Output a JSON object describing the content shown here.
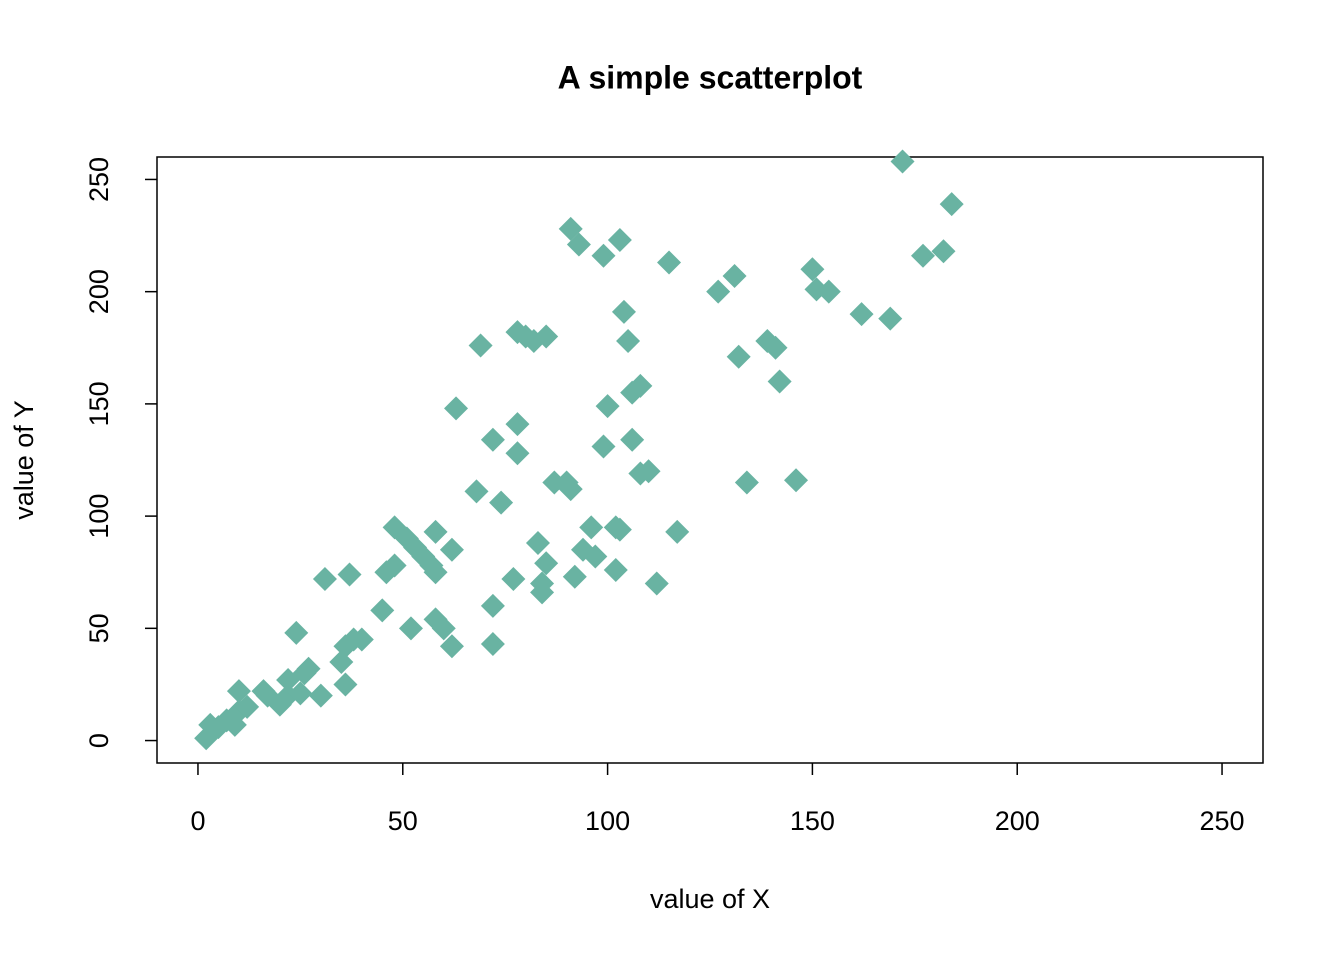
{
  "chart_data": {
    "type": "scatter",
    "title": "A simple scatterplot",
    "x_label": "value of X",
    "y_label": "value of Y",
    "x": [
      2,
      3,
      5,
      7,
      9,
      10,
      10,
      12,
      16,
      17,
      20,
      22,
      22,
      24,
      25,
      26,
      27,
      30,
      31,
      35,
      36,
      36,
      37,
      38,
      40,
      45,
      46,
      48,
      48,
      51,
      52,
      53,
      55,
      57,
      58,
      58,
      58,
      60,
      62,
      62,
      63,
      68,
      69,
      72,
      72,
      72,
      74,
      77,
      78,
      78,
      78,
      80,
      82,
      83,
      84,
      84,
      85,
      85,
      87,
      90,
      91,
      91,
      92,
      93,
      94,
      96,
      97,
      99,
      99,
      100,
      102,
      102,
      103,
      103,
      104,
      105,
      106,
      106,
      108,
      108,
      110,
      112,
      115,
      117,
      127,
      131,
      132,
      134,
      139,
      141,
      142,
      146,
      150,
      151,
      154,
      162,
      169,
      172,
      177,
      182,
      184
    ],
    "values": [
      1,
      7,
      6,
      9,
      7,
      13,
      22,
      15,
      22,
      20,
      16,
      20,
      27,
      48,
      21,
      30,
      32,
      20,
      72,
      35,
      25,
      42,
      74,
      45,
      45,
      58,
      75,
      78,
      95,
      90,
      50,
      86,
      82,
      78,
      75,
      93,
      54,
      50,
      42,
      85,
      148,
      111,
      176,
      43,
      60,
      134,
      106,
      72,
      128,
      141,
      182,
      180,
      178,
      88,
      70,
      66,
      79,
      180,
      115,
      115,
      228,
      112,
      73,
      221,
      85,
      95,
      82,
      216,
      131,
      149,
      76,
      95,
      223,
      94,
      191,
      178,
      134,
      155,
      158,
      119,
      120,
      70,
      213,
      93,
      200,
      207,
      171,
      115,
      178,
      175,
      160,
      116,
      210,
      201,
      200,
      190,
      188,
      258,
      216,
      218,
      239
    ],
    "color": "#69b3a2",
    "marker": "diamond",
    "xlim": [
      -10,
      260
    ],
    "ylim": [
      -10,
      260
    ],
    "xticks": [
      0,
      50,
      100,
      150,
      200,
      250
    ],
    "yticks": [
      0,
      50,
      100,
      150,
      200,
      250
    ]
  }
}
